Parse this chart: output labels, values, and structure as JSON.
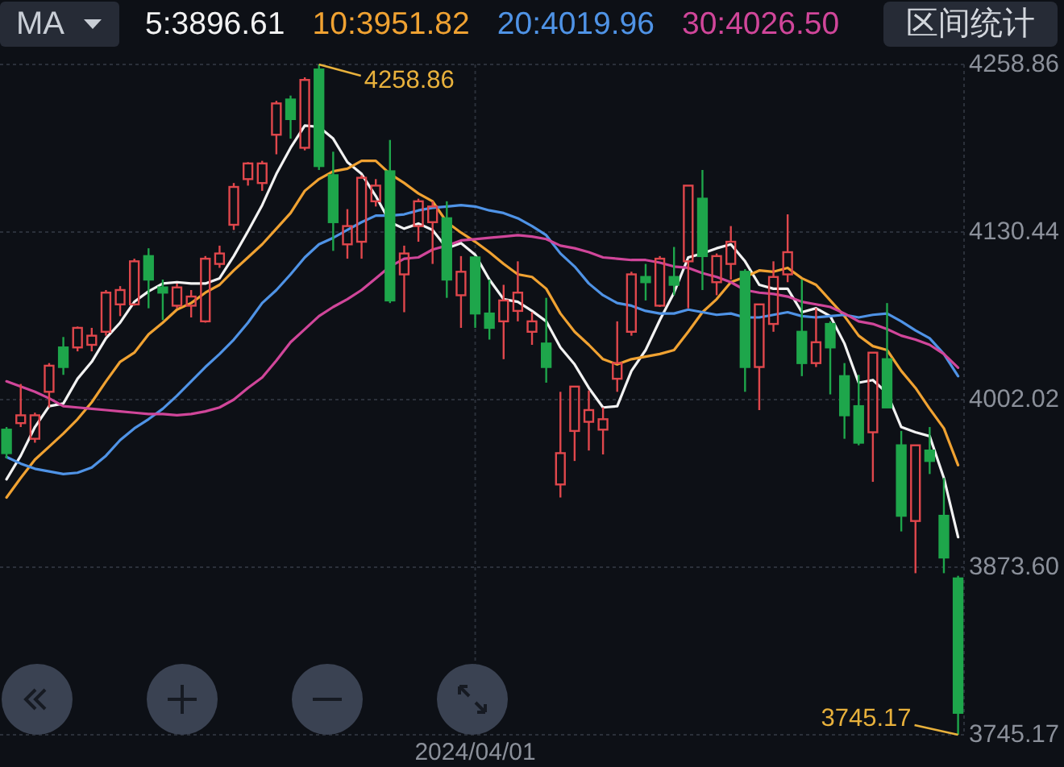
{
  "chart_data": {
    "type": "candlestick",
    "legend": "top",
    "legend_title": "MA",
    "grid": true,
    "categories": [
      null,
      null,
      null,
      null,
      null,
      null,
      null,
      null,
      null,
      null,
      null,
      null,
      null,
      null,
      null,
      null,
      null,
      null,
      null,
      null,
      null,
      null,
      null,
      null,
      null,
      null,
      null,
      null,
      null,
      null,
      null,
      null,
      null,
      "2024/04/01",
      null,
      null,
      null,
      null,
      null,
      null,
      null,
      null,
      null,
      null,
      null,
      null,
      null,
      null,
      null,
      null,
      null,
      null,
      null,
      null,
      null,
      null,
      null,
      null,
      null,
      null,
      null,
      null,
      null,
      null,
      null,
      null,
      null,
      null
    ],
    "ohlc": [
      [
        3979,
        3981,
        3957,
        3961
      ],
      [
        3984,
        4014,
        3981,
        3990
      ],
      [
        3972,
        3992,
        3969,
        3990
      ],
      [
        4008,
        4030,
        3996,
        4028
      ],
      [
        4042,
        4050,
        4021,
        4027
      ],
      [
        4042,
        4058,
        4039,
        4057
      ],
      [
        4044,
        4057,
        4039,
        4051
      ],
      [
        4054,
        4086,
        4051,
        4084
      ],
      [
        4075,
        4089,
        4066,
        4086
      ],
      [
        4075,
        4110,
        4074,
        4108
      ],
      [
        4112,
        4118,
        4072,
        4094
      ],
      [
        4088,
        4094,
        4063,
        4084
      ],
      [
        4074,
        4091,
        4072,
        4088
      ],
      [
        4074,
        4086,
        4065,
        4081
      ],
      [
        4062,
        4112,
        4061,
        4110
      ],
      [
        4106,
        4120,
        4103,
        4114
      ],
      [
        4136,
        4168,
        4132,
        4165
      ],
      [
        4171,
        4184,
        4166,
        4183
      ],
      [
        4168,
        4185,
        4162,
        4183
      ],
      [
        4205,
        4231,
        4190,
        4229
      ],
      [
        4232,
        4235,
        4202,
        4217
      ],
      [
        4195,
        4249,
        4193,
        4247
      ],
      [
        4255,
        4258.86,
        4178,
        4181
      ],
      [
        4174,
        4192,
        4116,
        4138
      ],
      [
        4121,
        4148,
        4110,
        4135
      ],
      [
        4123,
        4174,
        4110,
        4172
      ],
      [
        4154,
        4171,
        4150,
        4166
      ],
      [
        4177,
        4201,
        4076,
        4078
      ],
      [
        4098,
        4120,
        4069,
        4114
      ],
      [
        4135,
        4156,
        4123,
        4154
      ],
      [
        4138,
        4154,
        4106,
        4150
      ],
      [
        4141,
        4154,
        4080,
        4094
      ],
      [
        4082,
        4112,
        4057,
        4100
      ],
      [
        4111,
        4112,
        4057,
        4068
      ],
      [
        4068,
        4094,
        4048,
        4057
      ],
      [
        4062,
        4090,
        4033,
        4078
      ],
      [
        4070,
        4108,
        4062,
        4084
      ],
      [
        4054,
        4069,
        4044,
        4062
      ],
      [
        4045,
        4080,
        4015,
        4027
      ],
      [
        3937,
        4008,
        3927,
        3961
      ],
      [
        3978,
        4012,
        3955,
        4012
      ],
      [
        3985,
        4009,
        3963,
        3994
      ],
      [
        3979,
        3996,
        3960,
        3987
      ],
      [
        4018,
        4062,
        4008,
        4030
      ],
      [
        4054,
        4100,
        4051,
        4098
      ],
      [
        4096,
        4106,
        4078,
        4092
      ],
      [
        4074,
        4112,
        4073,
        4110
      ],
      [
        4096,
        4119,
        4082,
        4090
      ],
      [
        4108,
        4166,
        4072,
        4166
      ],
      [
        4156,
        4178,
        4086,
        4112
      ],
      [
        4092,
        4114,
        4082,
        4112
      ],
      [
        4106,
        4135,
        4094,
        4123
      ],
      [
        4100,
        4102,
        4008,
        4027
      ],
      [
        4027,
        4075,
        3994,
        4075
      ],
      [
        4060,
        4108,
        4054,
        4096
      ],
      [
        4098,
        4144,
        4092,
        4115
      ],
      [
        4054,
        4094,
        4020,
        4030
      ],
      [
        4030,
        4072,
        4027,
        4046
      ],
      [
        4060,
        4062,
        4006,
        4042
      ],
      [
        4020,
        4030,
        3972,
        3990
      ],
      [
        3997,
        4021,
        3967,
        3969
      ],
      [
        3977,
        4038,
        3939,
        4038
      ],
      [
        4033,
        4076,
        3996,
        3996
      ],
      [
        3967,
        3978,
        3901,
        3913
      ],
      [
        3909,
        3967,
        3869,
        3967
      ],
      [
        3963,
        3981,
        3945,
        3955
      ],
      [
        3913,
        3942,
        3869,
        3881
      ],
      [
        3865,
        3867,
        3745.17,
        3762
      ]
    ],
    "colors": [
      "#1ea64b",
      "#e0474c",
      "#e0474c",
      "#e0474c",
      "#1ea64b",
      "#e0474c",
      "#e0474c",
      "#e0474c",
      "#e0474c",
      "#e0474c",
      "#1ea64b",
      "#1ea64b",
      "#e0474c",
      "#e0474c",
      "#e0474c",
      "#e0474c",
      "#e0474c",
      "#e0474c",
      "#e0474c",
      "#e0474c",
      "#1ea64b",
      "#e0474c",
      "#1ea64b",
      "#1ea64b",
      "#e0474c",
      "#e0474c",
      "#e0474c",
      "#1ea64b",
      "#e0474c",
      "#e0474c",
      "#e0474c",
      "#1ea64b",
      "#e0474c",
      "#1ea64b",
      "#1ea64b",
      "#e0474c",
      "#e0474c",
      "#e0474c",
      "#1ea64b",
      "#e0474c",
      "#e0474c",
      "#e0474c",
      "#e0474c",
      "#e0474c",
      "#e0474c",
      "#1ea64b",
      "#e0474c",
      "#1ea64b",
      "#e0474c",
      "#1ea64b",
      "#e0474c",
      "#e0474c",
      "#1ea64b",
      "#e0474c",
      "#e0474c",
      "#e0474c",
      "#1ea64b",
      "#e0474c",
      "#1ea64b",
      "#1ea64b",
      "#1ea64b",
      "#e0474c",
      "#1ea64b",
      "#1ea64b",
      "#e0474c",
      "#1ea64b",
      "#1ea64b",
      "#1ea64b"
    ],
    "series": [
      {
        "name": "5:3896.61",
        "type": "line",
        "color": "#f2f2f2",
        "values": [
          3941,
          3959,
          3981,
          3997,
          3999,
          4018,
          4031,
          4049,
          4061,
          4077,
          4085,
          4091,
          4092,
          4091,
          4091,
          4095,
          4112,
          4131,
          4151,
          4175,
          4195,
          4212,
          4211,
          4202,
          4184,
          4175,
          4158,
          4138,
          4133,
          4137,
          4132,
          4118,
          4122,
          4113,
          4094,
          4079,
          4077,
          4070,
          4062,
          4042,
          4029,
          4011,
          3996,
          3997,
          4024,
          4040,
          4063,
          4084,
          4111,
          4114,
          4118,
          4121,
          4108,
          4090,
          4087,
          4087,
          4069,
          4072,
          4066,
          4045,
          4015,
          4017,
          4007,
          3981,
          3977,
          3974,
          3942,
          3896.61
        ]
      },
      {
        "name": "10:3951.82",
        "type": "line",
        "color": "#f0a232",
        "values": [
          3927,
          3942,
          3956,
          3966,
          3976,
          3987,
          4000,
          4016,
          4031,
          4038,
          4052,
          4061,
          4071,
          4076,
          4084,
          4090,
          4101,
          4111,
          4121,
          4133,
          4145,
          4162,
          4171,
          4177,
          4179,
          4185,
          4185,
          4175,
          4168,
          4160,
          4154,
          4138,
          4130,
          4123,
          4115,
          4106,
          4098,
          4096,
          4087,
          4068,
          4054,
          4044,
          4033,
          4029,
          4033,
          4035,
          4037,
          4040,
          4054,
          4069,
          4079,
          4092,
          4096,
          4101,
          4100,
          4103,
          4095,
          4090,
          4078,
          4066,
          4051,
          4043,
          4040,
          4024,
          4011,
          3995,
          3980,
          3951.82
        ]
      },
      {
        "name": "20:4019.96",
        "type": "line",
        "color": "#4f93e6",
        "values": [
          3958,
          3953,
          3949,
          3947,
          3945,
          3946,
          3950,
          3959,
          3971,
          3980,
          3987,
          3995,
          4005,
          4016,
          4027,
          4037,
          4048,
          4061,
          4076,
          4086,
          4098,
          4111,
          4121,
          4126,
          4132,
          4138,
          4143,
          4143,
          4144,
          4147,
          4149,
          4150,
          4151,
          4150,
          4147,
          4145,
          4141,
          4135,
          4128,
          4114,
          4104,
          4091,
          4082,
          4076,
          4074,
          4070,
          4068,
          4068,
          4071,
          4069,
          4067,
          4068,
          4065,
          4065,
          4067,
          4069,
          4066,
          4065,
          4066,
          4067,
          4065,
          4067,
          4068,
          4062,
          4055,
          4049,
          4037,
          4019.96
        ]
      },
      {
        "name": "30:4026.50",
        "type": "line",
        "color": "#d0469a",
        "values": [
          4016,
          4012,
          4008,
          4003,
          3997,
          3996,
          3995,
          3994,
          3993,
          3992,
          3991,
          3991,
          3990,
          3991,
          3993,
          3996,
          4002,
          4011,
          4019,
          4032,
          4046,
          4056,
          4066,
          4073,
          4079,
          4086,
          4095,
          4104,
          4110,
          4111,
          4117,
          4120,
          4124,
          4125,
          4126,
          4127,
          4128,
          4127,
          4125,
          4120,
          4118,
          4115,
          4111,
          4110,
          4109,
          4109,
          4107,
          4104,
          4103,
          4099,
          4096,
          4092,
          4086,
          4084,
          4083,
          4081,
          4077,
          4075,
          4073,
          4068,
          4062,
          4060,
          4056,
          4051,
          4048,
          4044,
          4037,
          4026.5
        ]
      }
    ],
    "ylim": [
      3745.17,
      4258.86
    ],
    "yticks": [
      3745.17,
      {
        "value": 3873.6,
        "label": "3873.60"
      },
      4002.02,
      4130.44,
      4258.86
    ],
    "annotations": [
      "4258.86",
      "3745.17",
      "区间统计"
    ]
  }
}
